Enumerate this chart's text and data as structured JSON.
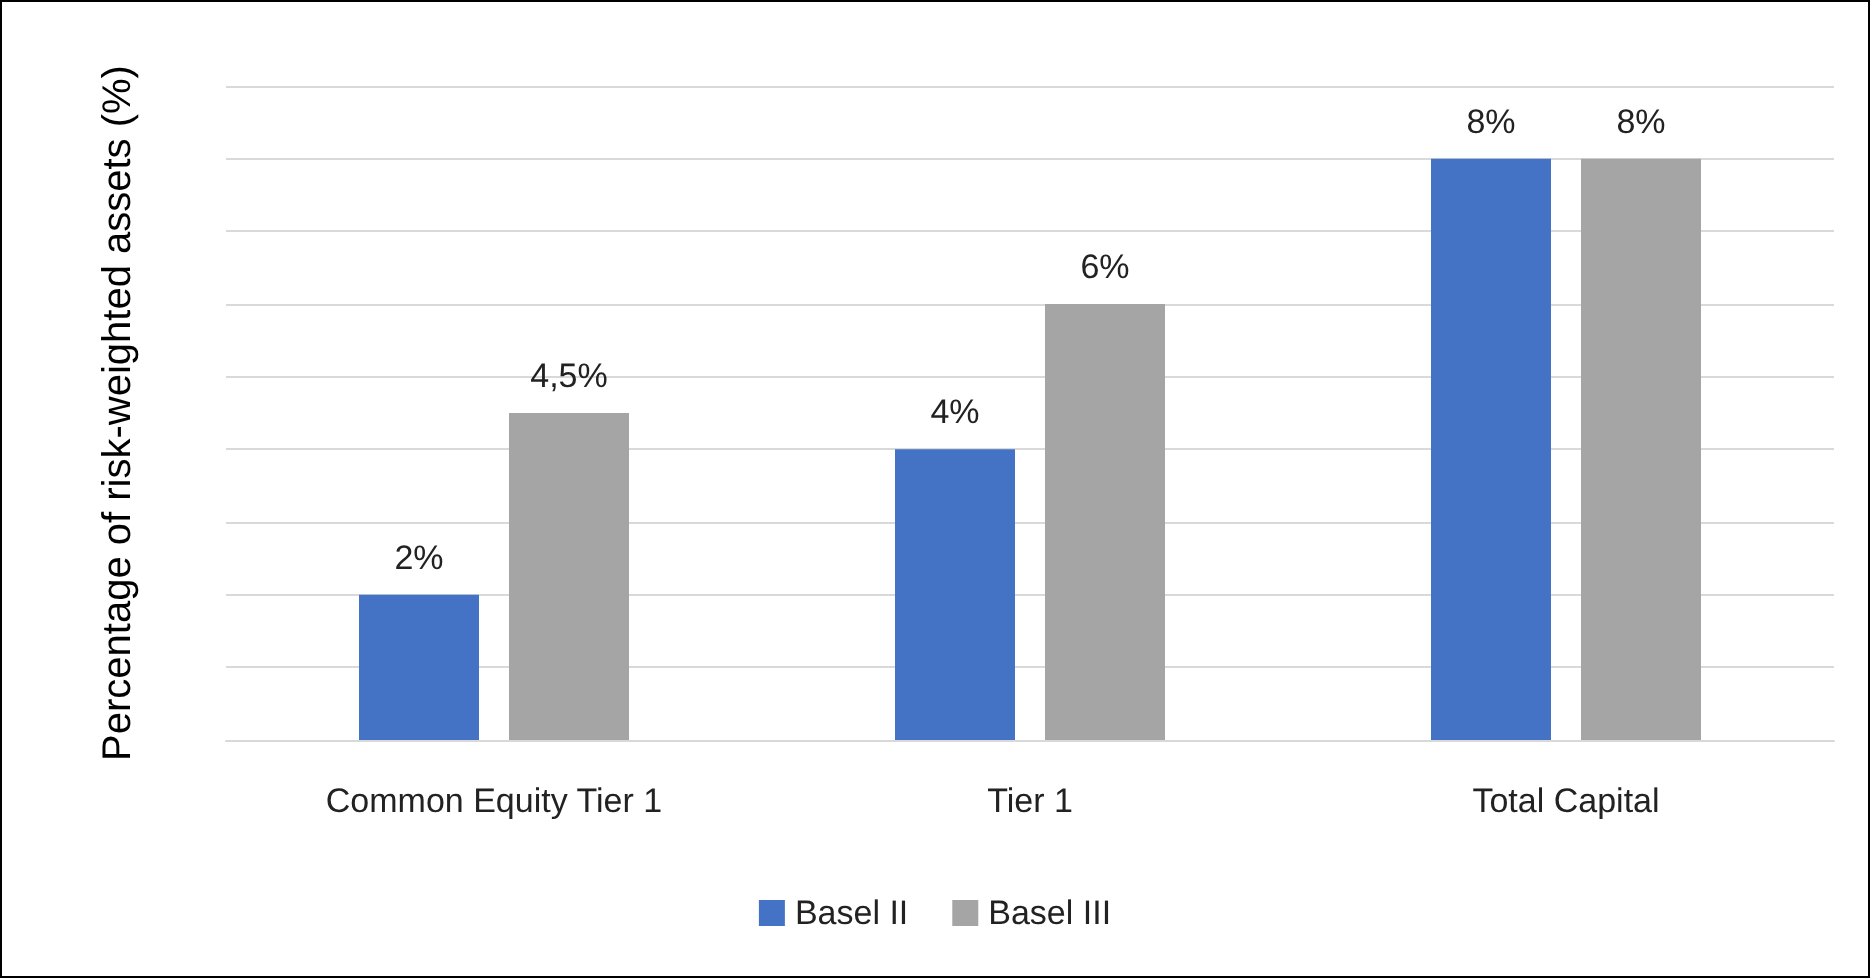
{
  "chart_data": {
    "type": "bar",
    "ylabel": "Percentage of risk-weighted assets (%)",
    "categories": [
      "Common Equity Tier 1",
      "Tier 1",
      "Total Capital"
    ],
    "series": [
      {
        "name": "Basel II",
        "color": "#4472c4",
        "values": [
          2,
          4,
          8
        ],
        "value_labels": [
          "2%",
          "4%",
          "8%"
        ]
      },
      {
        "name": "Basel III",
        "color": "#a5a5a5",
        "values": [
          4.5,
          6,
          8
        ],
        "value_labels": [
          "4,5%",
          "6%",
          "8%"
        ]
      }
    ],
    "ylim": [
      0,
      9
    ],
    "yticks": [
      {
        "value": 0,
        "label": null
      },
      {
        "value": 1,
        "label": null
      },
      {
        "value": 2,
        "label": null
      },
      {
        "value": 3,
        "label": null
      },
      {
        "value": 4,
        "label": null
      },
      {
        "value": 5,
        "label": null
      },
      {
        "value": 6,
        "label": null
      },
      {
        "value": 7,
        "label": null
      },
      {
        "value": 8,
        "label": null
      },
      {
        "value": 9,
        "label": null
      }
    ],
    "grid": "y",
    "legend": "bottom",
    "tick_labels": "x"
  }
}
